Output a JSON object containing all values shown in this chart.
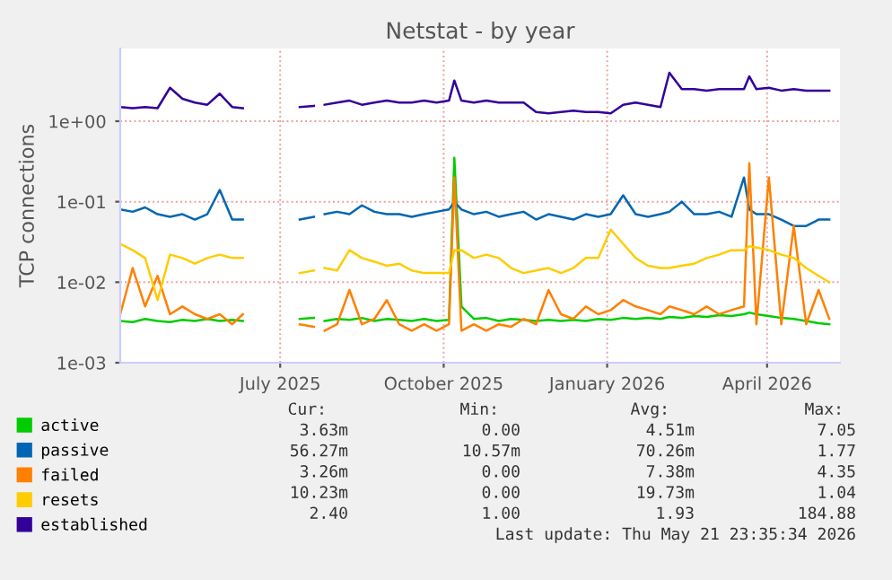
{
  "chart_data": {
    "type": "line",
    "title": "Netstat - by year",
    "ylabel": "TCP connections",
    "x": [
      "2025-04-02",
      "2025-04-09",
      "2025-04-16",
      "2025-04-23",
      "2025-04-30",
      "2025-05-07",
      "2025-05-14",
      "2025-05-21",
      "2025-05-28",
      "2025-06-04",
      "2025-06-10",
      "2025-06-20",
      "2025-07-12",
      "2025-07-20",
      "2025-07-23",
      "2025-07-26",
      "2025-08-02",
      "2025-08-09",
      "2025-08-16",
      "2025-08-23",
      "2025-08-30",
      "2025-09-06",
      "2025-09-13",
      "2025-09-20",
      "2025-09-27",
      "2025-10-04",
      "2025-10-07",
      "2025-10-11",
      "2025-10-18",
      "2025-10-25",
      "2025-11-01",
      "2025-11-08",
      "2025-11-15",
      "2025-11-22",
      "2025-11-29",
      "2025-12-06",
      "2025-12-13",
      "2025-12-20",
      "2025-12-27",
      "2026-01-03",
      "2026-01-10",
      "2026-01-17",
      "2026-01-24",
      "2026-01-31",
      "2026-02-05",
      "2026-02-12",
      "2026-02-19",
      "2026-02-26",
      "2026-03-05",
      "2026-03-12",
      "2026-03-19",
      "2026-03-22",
      "2026-03-26",
      "2026-04-02",
      "2026-04-09",
      "2026-04-16",
      "2026-04-23",
      "2026-04-30",
      "2026-05-06"
    ],
    "series": [
      {
        "name": "active",
        "color": "#00cc00",
        "values": [
          0.0033,
          0.0032,
          0.0035,
          0.0033,
          0.0032,
          0.0034,
          0.0033,
          0.0035,
          0.0033,
          0.0034,
          0.0033,
          null,
          0.0035,
          0.0036,
          null,
          0.0033,
          0.0035,
          0.0034,
          0.0036,
          0.0033,
          0.0035,
          0.0034,
          0.0033,
          0.0035,
          0.0033,
          0.0034,
          0.35,
          0.005,
          0.0035,
          0.0036,
          0.0033,
          0.0035,
          0.0034,
          0.0033,
          0.0034,
          0.0033,
          0.0034,
          0.0033,
          0.0035,
          0.0034,
          0.0036,
          0.0035,
          0.0036,
          0.0035,
          0.0037,
          0.0036,
          0.0038,
          0.0037,
          0.0039,
          0.0038,
          0.004,
          0.0042,
          0.004,
          0.0038,
          0.0036,
          0.0035,
          0.0033,
          0.0031,
          0.003
        ]
      },
      {
        "name": "passive",
        "color": "#0066b3",
        "values": [
          0.08,
          0.075,
          0.085,
          0.07,
          0.065,
          0.07,
          0.06,
          0.07,
          0.14,
          0.06,
          0.06,
          null,
          0.06,
          0.065,
          null,
          0.07,
          0.075,
          0.07,
          0.09,
          0.075,
          0.07,
          0.07,
          0.065,
          0.07,
          0.075,
          0.08,
          0.1,
          0.08,
          0.07,
          0.075,
          0.065,
          0.07,
          0.075,
          0.06,
          0.07,
          0.065,
          0.06,
          0.07,
          0.065,
          0.07,
          0.12,
          0.07,
          0.065,
          0.07,
          0.075,
          0.1,
          0.07,
          0.07,
          0.075,
          0.065,
          0.2,
          0.08,
          0.07,
          0.07,
          0.06,
          0.05,
          0.05,
          0.06,
          0.06
        ]
      },
      {
        "name": "failed",
        "color": "#ff8000",
        "values": [
          0.004,
          0.015,
          0.005,
          0.012,
          0.004,
          0.005,
          0.004,
          0.0035,
          0.004,
          0.003,
          0.004,
          null,
          0.003,
          0.0028,
          null,
          0.0025,
          0.003,
          0.008,
          0.003,
          0.0035,
          0.006,
          0.003,
          0.0025,
          0.003,
          0.0025,
          0.003,
          0.2,
          0.0025,
          0.003,
          0.0025,
          0.003,
          0.0028,
          0.0035,
          0.003,
          0.008,
          0.004,
          0.0035,
          0.005,
          0.004,
          0.0045,
          0.006,
          0.005,
          0.0045,
          0.004,
          0.005,
          0.0045,
          0.004,
          0.005,
          0.004,
          0.0045,
          0.005,
          0.3,
          0.003,
          0.2,
          0.003,
          0.05,
          0.003,
          0.008,
          0.0035
        ]
      },
      {
        "name": "resets",
        "color": "#ffcc00",
        "values": [
          0.03,
          0.025,
          0.02,
          0.006,
          0.022,
          0.02,
          0.017,
          0.02,
          0.022,
          0.02,
          0.02,
          null,
          0.013,
          0.014,
          null,
          0.015,
          0.014,
          0.025,
          0.02,
          0.018,
          0.016,
          0.017,
          0.014,
          0.013,
          0.013,
          0.013,
          0.025,
          0.025,
          0.02,
          0.022,
          0.02,
          0.015,
          0.013,
          0.014,
          0.015,
          0.013,
          0.015,
          0.02,
          0.02,
          0.045,
          0.03,
          0.02,
          0.016,
          0.015,
          0.015,
          0.016,
          0.017,
          0.02,
          0.022,
          0.025,
          0.025,
          0.028,
          0.027,
          0.025,
          0.022,
          0.02,
          0.015,
          0.012,
          0.01
        ]
      },
      {
        "name": "established",
        "color": "#330099",
        "values": [
          1.5,
          1.45,
          1.5,
          1.45,
          2.6,
          1.9,
          1.7,
          1.6,
          2.2,
          1.5,
          1.45,
          null,
          1.5,
          1.55,
          null,
          1.6,
          1.7,
          1.8,
          1.6,
          1.7,
          1.8,
          1.7,
          1.7,
          1.8,
          1.7,
          1.8,
          3.2,
          1.8,
          1.7,
          1.8,
          1.7,
          1.7,
          1.7,
          1.3,
          1.25,
          1.3,
          1.35,
          1.3,
          1.3,
          1.25,
          1.6,
          1.7,
          1.6,
          1.5,
          4.0,
          2.5,
          2.5,
          2.4,
          2.5,
          2.5,
          2.5,
          3.6,
          2.5,
          2.6,
          2.4,
          2.5,
          2.4,
          2.4,
          2.4
        ]
      }
    ],
    "log": "y",
    "ylim": [
      0.001,
      8
    ],
    "yticks": [
      {
        "value": 0.001,
        "label": "1e-03"
      },
      {
        "value": 0.01,
        "label": "1e-02"
      },
      {
        "value": 0.1,
        "label": "1e-01"
      },
      {
        "value": 1,
        "label": "1e+00"
      }
    ],
    "xlim": [
      "2025-04-02",
      "2026-05-12"
    ],
    "xticks": [
      {
        "value": "2025-07-01",
        "label": "July 2025"
      },
      {
        "value": "2025-10-01",
        "label": "October 2025"
      },
      {
        "value": "2026-01-01",
        "label": "January 2026"
      },
      {
        "value": "2026-04-01",
        "label": "April 2026"
      }
    ],
    "grid": true,
    "legend": "bottom left",
    "marker": "none",
    "line_style": "solid",
    "annotations": [
      "Cur:",
      "Min:",
      "Avg:",
      "Max:",
      "3.63m",
      "0.00",
      "4.51m",
      "7.05",
      "56.27m",
      "10.57m",
      "70.26m",
      "1.77",
      "3.26m",
      "0.00",
      "7.38m",
      "4.35",
      "10.23m",
      "0.00",
      "19.73m",
      "1.04",
      "2.40",
      "1.00",
      "1.93",
      "184.88",
      "Last update: Thu May 21 23:35:34 2026"
    ]
  }
}
